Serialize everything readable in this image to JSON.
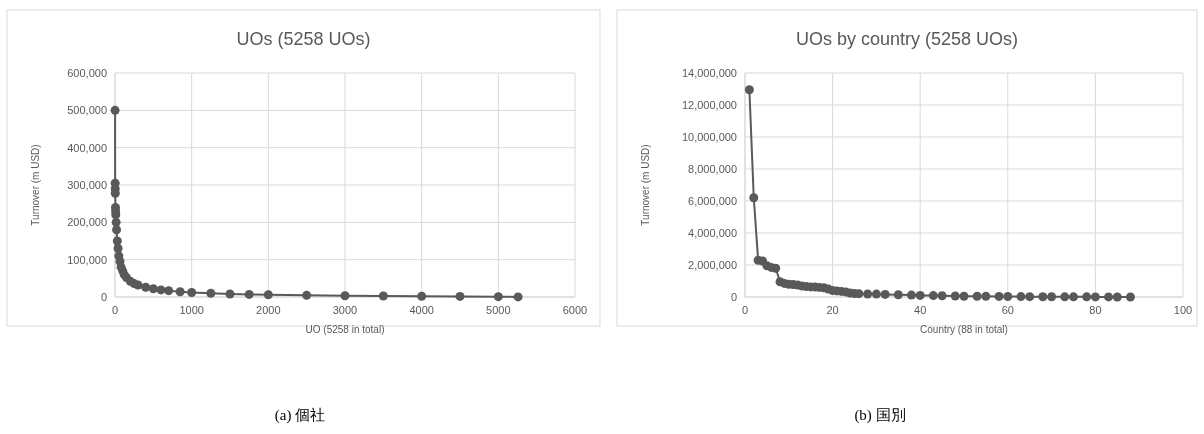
{
  "chart_data": [
    {
      "type": "line",
      "title": "UOs (5258 UOs)",
      "xlabel": "UO (5258 in total)",
      "ylabel": "Turnover (m USD)",
      "annotations": [
        "(a)  個社"
      ],
      "xlim": [
        0,
        6000
      ],
      "xticks": [
        0,
        1000,
        2000,
        3000,
        4000,
        5000,
        6000
      ],
      "ylim": [
        0,
        600000
      ],
      "yticks": [
        0,
        {
          "value": 100000,
          "label": "100,000"
        },
        {
          "value": 200000,
          "label": "200,000"
        },
        {
          "value": 300000,
          "label": "300,000"
        },
        {
          "value": 400000,
          "label": "400,000"
        },
        {
          "value": 500000,
          "label": "500,000"
        },
        {
          "value": 600000,
          "label": "600,000"
        }
      ],
      "grid": true,
      "marker": "circle",
      "line_style": "solid",
      "series": [
        {
          "color": "#595959",
          "x": [
            1,
            2,
            3,
            4,
            6,
            8,
            10,
            15,
            20,
            30,
            40,
            50,
            65,
            80,
            100,
            120,
            150,
            200,
            250,
            300,
            400,
            500,
            600,
            700,
            850,
            1000,
            1250,
            1500,
            1750,
            2000,
            2500,
            3000,
            3500,
            4000,
            4500,
            5000,
            5258
          ],
          "values": [
            500000,
            305000,
            290000,
            278000,
            240000,
            230000,
            220000,
            200000,
            180000,
            150000,
            130000,
            110000,
            95000,
            80000,
            70000,
            60000,
            52000,
            42000,
            36000,
            32000,
            26000,
            22000,
            19000,
            17000,
            14000,
            12000,
            10000,
            8000,
            7000,
            6000,
            4500,
            3500,
            2800,
            2000,
            1500,
            1000,
            200
          ]
        }
      ]
    },
    {
      "type": "line",
      "title": "UOs by country (5258 UOs)",
      "xlabel": "Country (88 in total)",
      "ylabel": "Turnover (m USD)",
      "annotations": [
        "(b)  国別"
      ],
      "xlim": [
        0,
        100
      ],
      "xticks": [
        0,
        20,
        40,
        60,
        80,
        100
      ],
      "ylim": [
        0,
        14000000
      ],
      "yticks": [
        0,
        {
          "value": 2000000,
          "label": "2,000,000"
        },
        {
          "value": 4000000,
          "label": "4,000,000"
        },
        {
          "value": 6000000,
          "label": "6,000,000"
        },
        {
          "value": 8000000,
          "label": "8,000,000"
        },
        {
          "value": 10000000,
          "label": "10,000,000"
        },
        {
          "value": 12000000,
          "label": "12,000,000"
        },
        {
          "value": 14000000,
          "label": "14,000,000"
        }
      ],
      "grid": true,
      "marker": "circle",
      "line_style": "solid",
      "series": [
        {
          "color": "#595959",
          "x": [
            1,
            2,
            3,
            4,
            5,
            6,
            7,
            8,
            9,
            10,
            11,
            12,
            13,
            14,
            15,
            16,
            17,
            18,
            19,
            20,
            21,
            22,
            23,
            24,
            25,
            26,
            28,
            30,
            32,
            35,
            38,
            40,
            43,
            45,
            48,
            50,
            53,
            55,
            58,
            60,
            63,
            65,
            68,
            70,
            73,
            75,
            78,
            80,
            83,
            85,
            88
          ],
          "values": [
            12950000,
            6200000,
            2300000,
            2250000,
            1950000,
            1850000,
            1800000,
            950000,
            850000,
            800000,
            780000,
            750000,
            680000,
            650000,
            630000,
            620000,
            600000,
            580000,
            500000,
            400000,
            380000,
            350000,
            320000,
            250000,
            220000,
            210000,
            190000,
            180000,
            160000,
            140000,
            120000,
            100000,
            90000,
            80000,
            60000,
            50000,
            45000,
            40000,
            35000,
            30000,
            25000,
            20000,
            18000,
            15000,
            12000,
            10000,
            8000,
            6000,
            4000,
            3000,
            1000
          ]
        }
      ]
    }
  ]
}
